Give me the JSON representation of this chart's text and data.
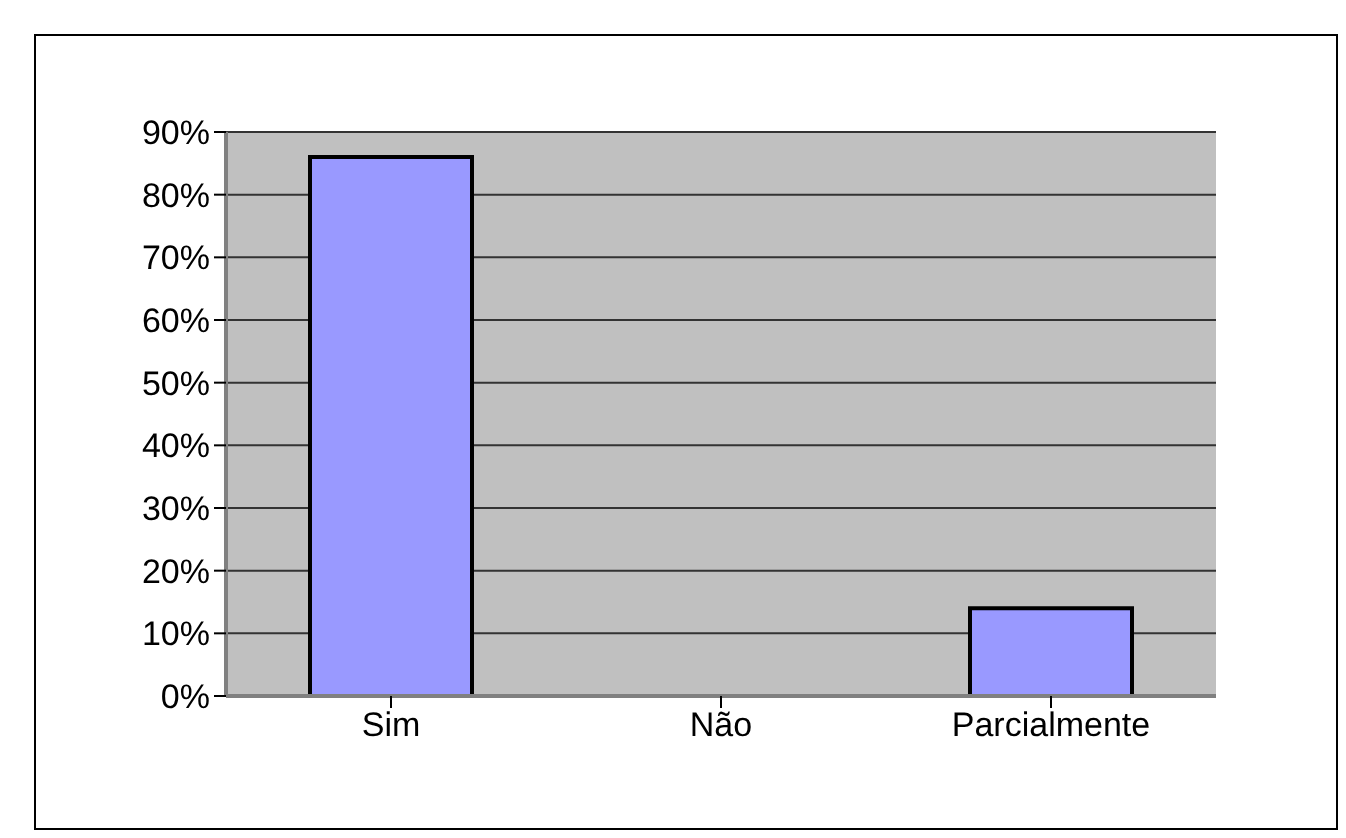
{
  "chart_data": {
    "type": "bar",
    "categories": [
      "Sim",
      "Não",
      "Parcialmente"
    ],
    "values": [
      86,
      0,
      14
    ],
    "color": "#9999ff",
    "ylim": [
      0,
      90
    ],
    "yticks": [
      {
        "value": 0,
        "label": "0%"
      },
      {
        "value": 10,
        "label": "10%"
      },
      {
        "value": 20,
        "label": "20%"
      },
      {
        "value": 30,
        "label": "30%"
      },
      {
        "value": 40,
        "label": "40%"
      },
      {
        "value": 50,
        "label": "50%"
      },
      {
        "value": 60,
        "label": "60%"
      },
      {
        "value": 70,
        "label": "70%"
      },
      {
        "value": 80,
        "label": "80%"
      },
      {
        "value": 90,
        "label": "90%"
      }
    ],
    "grid": "y"
  }
}
